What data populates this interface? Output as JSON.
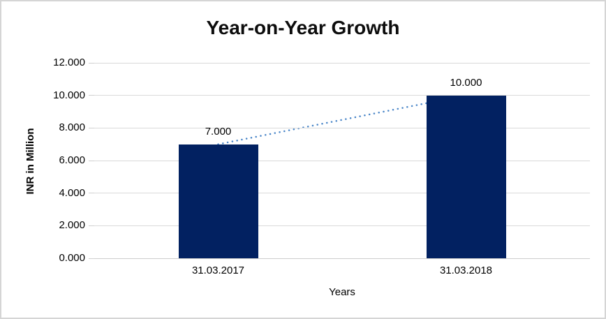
{
  "chart_data": {
    "type": "bar",
    "title": "Year-on-Year Growth",
    "xlabel": "Years",
    "ylabel": "INR in Million",
    "categories": [
      "31.03.2017",
      "31.03.2018"
    ],
    "values": [
      7000,
      10000
    ],
    "value_labels": [
      "7.000",
      "10.000"
    ],
    "ylim": [
      0,
      12000
    ],
    "ytick_values": [
      0,
      2000,
      4000,
      6000,
      8000,
      10000,
      12000
    ],
    "ytick_labels": [
      "0.000",
      "2.000",
      "4.000",
      "6.000",
      "8.000",
      "10.000",
      "12.000"
    ],
    "grid": true,
    "legend": false,
    "trendline": {
      "style": "dotted",
      "from_value": 7000,
      "to_value": 10000
    },
    "colors": {
      "bar": "#022161",
      "trendline": "#4a86c8",
      "gridline": "#d9d9d9",
      "axis_line": "#cdcdcd",
      "text": "#000000",
      "frame_border": "#d5d5d5"
    }
  }
}
